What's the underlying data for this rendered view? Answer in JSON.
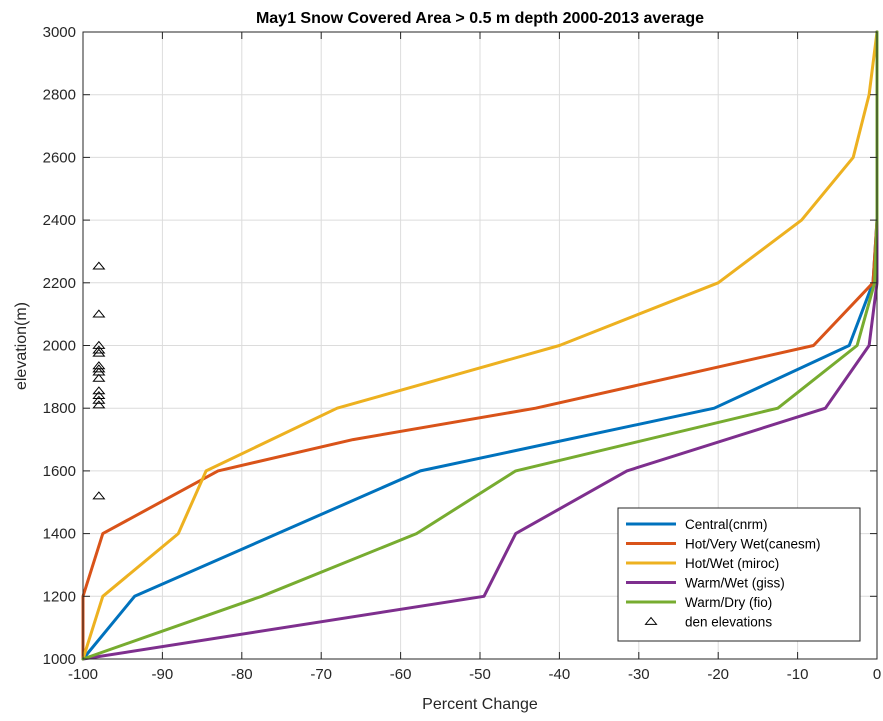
{
  "chart_data": {
    "type": "line",
    "title": "May1  Snow Covered Area > 0.5 m depth    2000-2013 average",
    "xlabel": "Percent Change",
    "ylabel": "elevation(m)",
    "xlim": [
      -100,
      0
    ],
    "ylim": [
      1000,
      3000
    ],
    "xticks": [
      -100,
      -90,
      -80,
      -70,
      -60,
      -50,
      -40,
      -30,
      -20,
      -10,
      0
    ],
    "yticks": [
      1000,
      1200,
      1400,
      1600,
      1800,
      2000,
      2200,
      2400,
      2600,
      2800,
      3000
    ],
    "grid": true,
    "legend_position": "bottom-right",
    "series": [
      {
        "name": "Central(cnrm)",
        "color": "#0072BD",
        "points": [
          [
            -100,
            1000
          ],
          [
            -93.5,
            1200
          ],
          [
            -57.5,
            1600
          ],
          [
            -20.5,
            1800
          ],
          [
            -3.5,
            2000
          ],
          [
            -0.5,
            2200
          ],
          [
            0,
            2400
          ],
          [
            0,
            2600
          ],
          [
            0,
            2800
          ],
          [
            0,
            3000
          ]
        ]
      },
      {
        "name": "Hot/Very Wet(canesm)",
        "color": "#D95319",
        "points": [
          [
            -100,
            1000
          ],
          [
            -100,
            1200
          ],
          [
            -97.5,
            1400
          ],
          [
            -83,
            1600
          ],
          [
            -66,
            1700
          ],
          [
            -43,
            1800
          ],
          [
            -8,
            2000
          ],
          [
            -0.5,
            2200
          ],
          [
            0,
            2400
          ],
          [
            0,
            2600
          ],
          [
            0,
            2800
          ],
          [
            0,
            3000
          ]
        ]
      },
      {
        "name": "Hot/Wet (miroc)",
        "color": "#EDB120",
        "points": [
          [
            -100,
            1000
          ],
          [
            -97.5,
            1200
          ],
          [
            -88,
            1400
          ],
          [
            -84.5,
            1600
          ],
          [
            -68,
            1800
          ],
          [
            -40,
            2000
          ],
          [
            -20,
            2200
          ],
          [
            -9.5,
            2400
          ],
          [
            -3,
            2600
          ],
          [
            -1,
            2800
          ],
          [
            0,
            3000
          ]
        ]
      },
      {
        "name": "Warm/Wet (giss)",
        "color": "#7E2F8E",
        "points": [
          [
            -100,
            1000
          ],
          [
            -49.5,
            1200
          ],
          [
            -45.5,
            1400
          ],
          [
            -31.5,
            1600
          ],
          [
            -6.5,
            1800
          ],
          [
            -1,
            2000
          ],
          [
            0,
            2200
          ],
          [
            0,
            2400
          ],
          [
            0,
            2600
          ],
          [
            0,
            2800
          ],
          [
            0,
            3000
          ]
        ]
      },
      {
        "name": "Warm/Dry (fio)",
        "color": "#77AC30",
        "points": [
          [
            -100,
            1000
          ],
          [
            -77.5,
            1200
          ],
          [
            -58,
            1400
          ],
          [
            -45.5,
            1600
          ],
          [
            -12.5,
            1800
          ],
          [
            -2.5,
            2000
          ],
          [
            -0.3,
            2200
          ],
          [
            0,
            2400
          ],
          [
            0,
            2600
          ],
          [
            0,
            2800
          ],
          [
            0,
            3000
          ]
        ]
      }
    ],
    "markers": {
      "name": "den elevations",
      "symbol": "△",
      "points": [
        [
          -98,
          2253
        ],
        [
          -98,
          2100
        ],
        [
          -98,
          2000
        ],
        [
          -98,
          1985
        ],
        [
          -98,
          1975
        ],
        [
          -98,
          1935
        ],
        [
          -98,
          1925
        ],
        [
          -98,
          1915
        ],
        [
          -98,
          1895
        ],
        [
          -98,
          1855
        ],
        [
          -98,
          1840
        ],
        [
          -98,
          1825
        ],
        [
          -98,
          1810
        ],
        [
          -98,
          1520
        ]
      ]
    }
  }
}
